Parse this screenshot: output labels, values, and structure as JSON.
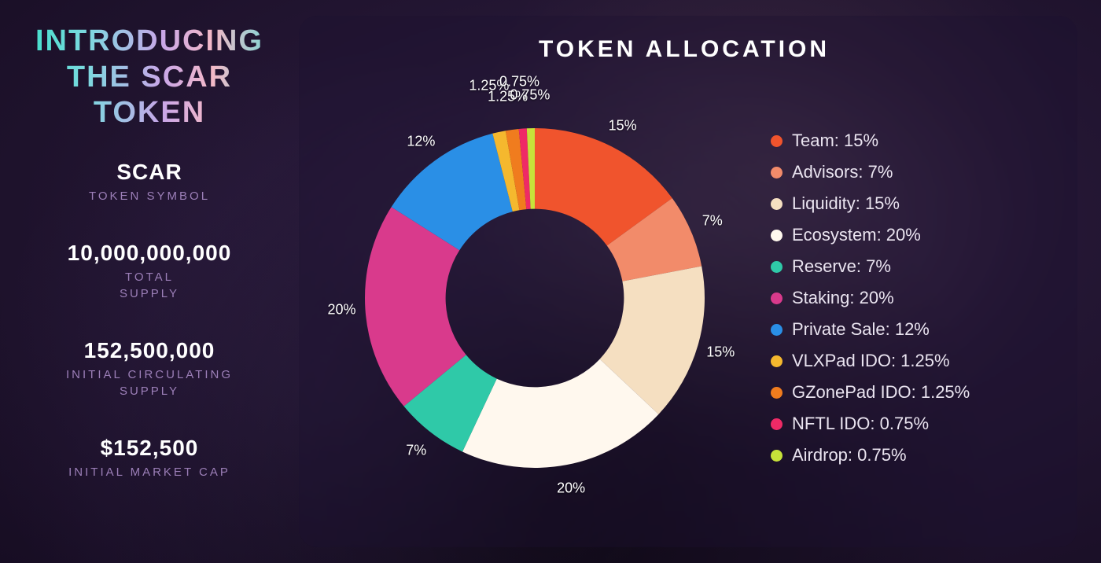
{
  "left": {
    "headline_line1": "INTRODUCING",
    "headline_line2": "THE SCAR TOKEN",
    "stats": [
      {
        "value": "SCAR",
        "label": "TOKEN SYMBOL"
      },
      {
        "value": "10,000,000,000",
        "label": "TOTAL SUPPLY"
      },
      {
        "value": "152,500,000",
        "label": "INITIAL CIRCULATING SUPPLY"
      },
      {
        "value": "$152,500",
        "label": "INITIAL MARKET CAP"
      }
    ]
  },
  "chart": {
    "type": "donut",
    "title": "TOKEN ALLOCATION",
    "inner_radius_pct": 42,
    "outer_radius_pct": 80,
    "start_angle_deg": 0,
    "center_color": "#1a1028",
    "label_font_size": 18,
    "legend_font_size": 22,
    "title_font_size": 30,
    "slices": [
      {
        "name": "Team",
        "pct": 15,
        "color": "#f0542d",
        "legend": "Team: 15%",
        "label": "15%"
      },
      {
        "name": "Advisors",
        "pct": 7,
        "color": "#f28b6a",
        "legend": "Advisors: 7%",
        "label": "7%"
      },
      {
        "name": "Liquidity",
        "pct": 15,
        "color": "#f5dfc1",
        "legend": "Liquidity: 15%",
        "label": "15%"
      },
      {
        "name": "Ecosystem",
        "pct": 20,
        "color": "#fff8ee",
        "legend": "Ecosystem: 20%",
        "label": "20%"
      },
      {
        "name": "Reserve",
        "pct": 7,
        "color": "#2fc9a8",
        "legend": "Reserve: 7%",
        "label": "7%"
      },
      {
        "name": "Staking",
        "pct": 20,
        "color": "#d93a8c",
        "legend": "Staking: 20%",
        "label": "20%"
      },
      {
        "name": "Private Sale",
        "pct": 12,
        "color": "#2a8fe6",
        "legend": "Private Sale: 12%",
        "label": "12%"
      },
      {
        "name": "VLXPad IDO",
        "pct": 1.25,
        "color": "#f5b82e",
        "legend": "VLXPad IDO: 1.25%",
        "label": "1.25%"
      },
      {
        "name": "GZonePad IDO",
        "pct": 1.25,
        "color": "#f07c1e",
        "legend": "GZonePad IDO: 1.25%",
        "label": "1.25%"
      },
      {
        "name": "NFTL IDO",
        "pct": 0.75,
        "color": "#ef2a66",
        "legend": "NFTL IDO: 0.75%",
        "label": "0.75%"
      },
      {
        "name": "Airdrop",
        "pct": 0.75,
        "color": "#c7e23a",
        "legend": "Airdrop:  0.75%",
        "label": "0.75%"
      }
    ]
  }
}
